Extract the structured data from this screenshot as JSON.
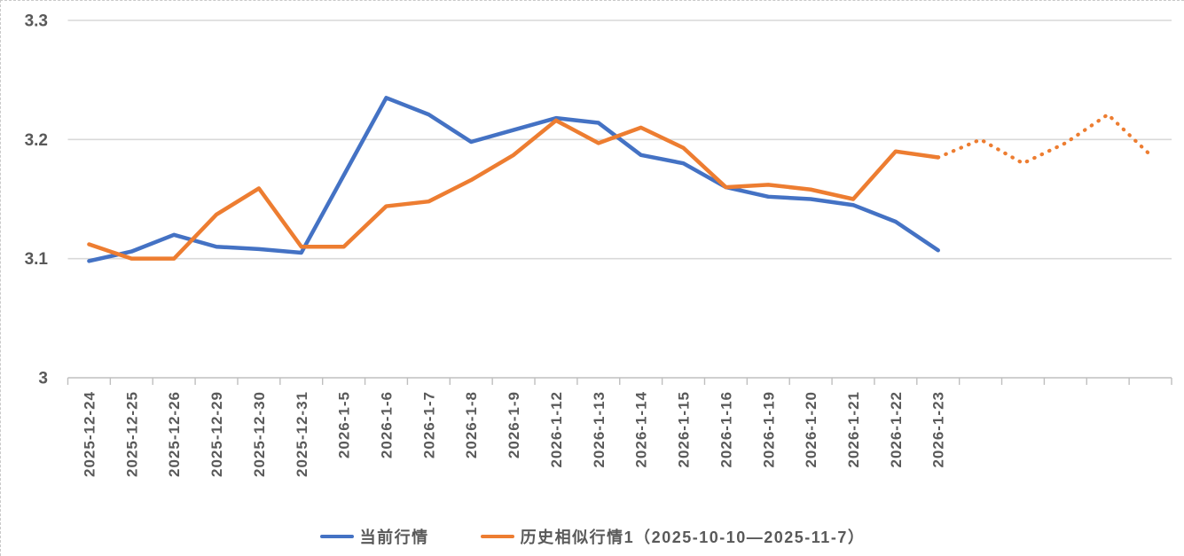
{
  "chart_data": {
    "type": "line",
    "title": "",
    "xlabel": "",
    "ylabel": "",
    "categories": [
      "2025-12-24",
      "2025-12-25",
      "2025-12-26",
      "2025-12-29",
      "2025-12-30",
      "2025-12-31",
      "2026-1-5",
      "2026-1-6",
      "2026-1-7",
      "2026-1-8",
      "2026-1-9",
      "2026-1-12",
      "2026-1-13",
      "2026-1-14",
      "2026-1-15",
      "2026-1-16",
      "2026-1-19",
      "2026-1-20",
      "2026-1-21",
      "2026-1-22",
      "2026-1-23",
      "",
      "",
      "",
      "",
      ""
    ],
    "y_ticks": [
      3,
      3.1,
      3.2,
      3.3
    ],
    "y_tick_labels": [
      "3",
      "3.1",
      "3.2",
      "3.3"
    ],
    "ylim": [
      3.0,
      3.3
    ],
    "grid": "horizontal-light",
    "legend_position": "bottom-center",
    "series": [
      {
        "name": "当前行情",
        "color": "#4472C4",
        "style": "solid",
        "solid_count": 21,
        "values": [
          3.098,
          3.106,
          3.12,
          3.11,
          3.108,
          3.105,
          3.17,
          3.235,
          3.221,
          3.198,
          3.208,
          3.218,
          3.214,
          3.187,
          3.18,
          3.16,
          3.152,
          3.15,
          3.145,
          3.131,
          3.107,
          null,
          null,
          null,
          null,
          null
        ]
      },
      {
        "name": "历史相似行情1（2025-10-10—2025-11-7）",
        "color": "#ED7D31",
        "style": "solid-then-dotted",
        "solid_count": 21,
        "values": [
          3.112,
          3.1,
          3.1,
          3.137,
          3.159,
          3.11,
          3.11,
          3.144,
          3.148,
          3.166,
          3.187,
          3.216,
          3.197,
          3.21,
          3.193,
          3.16,
          3.162,
          3.158,
          3.15,
          3.19,
          3.185,
          3.2,
          3.18,
          3.197,
          3.221,
          3.187
        ]
      }
    ]
  },
  "colors": {
    "series_current": "#4472C4",
    "series_historical": "#ED7D31",
    "gridline": "#D9D9D9",
    "axis_line": "#BFBFBF",
    "tick_mark": "#BFBFBF",
    "axis_text": "#595959",
    "legend_text": "#595959",
    "background": "#FFFFFF"
  }
}
